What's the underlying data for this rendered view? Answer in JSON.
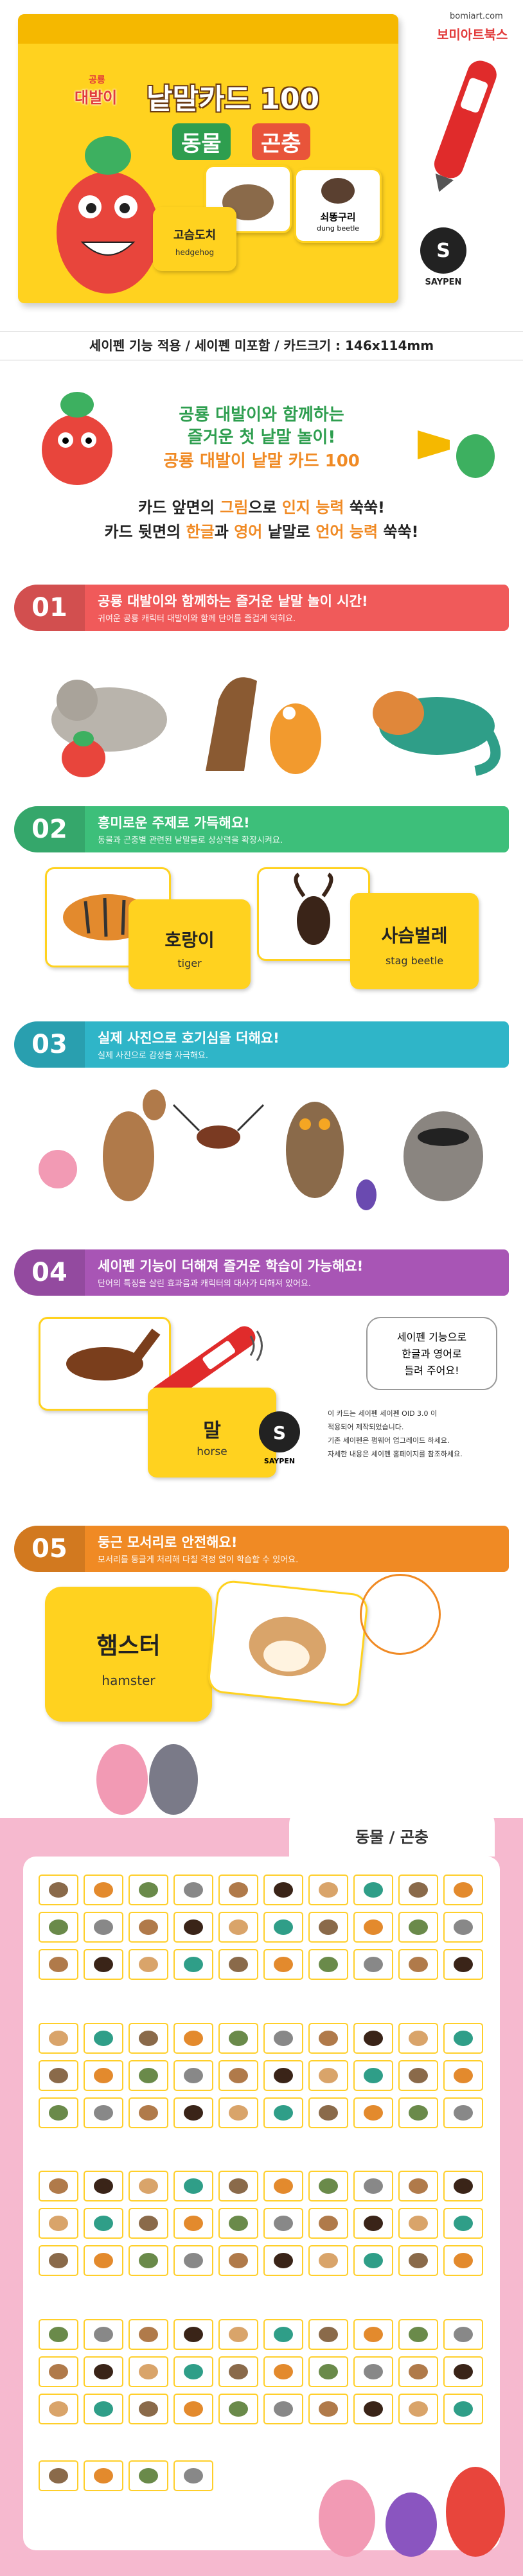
{
  "hero": {
    "brand_small": "공룡",
    "brand": "대발이",
    "title": "낱말카드 100",
    "subtitle_1": "동물",
    "subtitle_2": "곤충",
    "cards": [
      {
        "ko": "고슴도치",
        "en": "hedgehog"
      },
      {
        "ko": "쇠똥구리",
        "en": "dung beetle"
      }
    ],
    "site": "bomiart.com",
    "publisher": "보미아트북스",
    "pen_brand": "SAYPEN"
  },
  "spec": "세이펜 기능 적용 / 세이펜 미포함 / 카드크기 : 146x114mm",
  "intro": [
    "공룡 대발이와 함께하는",
    "즐거운 첫 낱말 놀이!",
    "공룡 대발이 낱말 카드 100"
  ],
  "features_intro": [
    [
      "카드 앞면의 ",
      "그림",
      "으로 ",
      "인지 능력",
      " 쑥쑥!"
    ],
    [
      "카드 뒷면의 ",
      "한글",
      "과 ",
      "영어",
      " 낱말로 ",
      "언어 능력",
      " 쑥쑥!"
    ]
  ],
  "sections": [
    {
      "number": "01",
      "color": "#f05a5a",
      "title": "공룡 대발이와 함께하는 즐거운 낱말 놀이 시간!",
      "desc": "귀여운 공룡 캐릭터 대발이와 함께 단어를 즐겁게 익혀요."
    },
    {
      "number": "02",
      "color": "#3dbf7a",
      "title": "흥미로운 주제로 가득해요!",
      "desc": "동물과 곤충별 관련된 낱말들로 상상력을 확장시켜요."
    },
    {
      "number": "03",
      "color": "#2fb5c8",
      "title": "실제 사진으로 호기심을 더해요!",
      "desc": "실제 사진으로 감성을 자극해요."
    },
    {
      "number": "04",
      "color": "#a855b5",
      "title": "세이펜 기능이 더해져 즐거운 학습이 가능해요!",
      "desc": "단어의 특징을 살린 효과음과 캐릭터의 대사가 더해져 있어요."
    },
    {
      "number": "05",
      "color": "#f08a24",
      "title": "둥근 모서리로 안전해요!",
      "desc": "모서리를 둥글게 처리해 다칠 걱정 없이 학습할 수 있어요."
    }
  ],
  "topic_cards": [
    {
      "ko": "호랑이",
      "en": "tiger"
    },
    {
      "ko": "사슴벌레",
      "en": "stag beetle"
    }
  ],
  "saypen": {
    "card": {
      "ko": "말",
      "en": "horse"
    },
    "bubble": [
      "세이펜 기능으로",
      "한글과 영어로",
      "들려 주어요!"
    ],
    "logo": "SAYPEN",
    "notes": [
      "이 카드는 세이펜 세이펜 OID 3.0 이",
      "적용되어 제작되었습니다.",
      "기존 세이펜은 펌웨어 업그레이드 하세요.",
      "자세한 내용은 세이펜 홈페이지를 참조하세요."
    ]
  },
  "safe_card": {
    "ko": "햄스터",
    "en": "hamster"
  },
  "panel": {
    "tab": "동물 / 곤충"
  }
}
